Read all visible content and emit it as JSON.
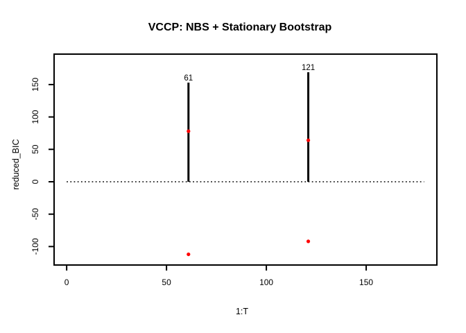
{
  "figure": {
    "background": "#ffffff",
    "foreground": "#000000"
  },
  "chart_data": {
    "type": "scatter",
    "title": "VCCP: NBS + Stationary Bootstrap",
    "xlabel": "1:T",
    "ylabel": "reduced_BIC",
    "x_ticks": [
      0,
      50,
      100,
      150
    ],
    "y_ticks": [
      -100,
      -50,
      0,
      50,
      100,
      150
    ],
    "xlim": [
      -6.3,
      185.4
    ],
    "ylim": [
      -128.5,
      197
    ],
    "grid": false,
    "legend": null,
    "zero_line": {
      "y": 0,
      "style": "dotted",
      "x_start": 0,
      "x_end": 179
    },
    "change_point_lines": [
      {
        "x": 61,
        "y_from": 0,
        "y_to": 153,
        "label": "61"
      },
      {
        "x": 121,
        "y_from": 0,
        "y_to": 169,
        "label": "121"
      }
    ],
    "points": [
      {
        "x": 61,
        "y": 78
      },
      {
        "x": 121,
        "y": 64
      },
      {
        "x": 61,
        "y": -112
      },
      {
        "x": 121,
        "y": -92
      }
    ],
    "point_color": "#ff0000",
    "line_color": "#000000"
  }
}
